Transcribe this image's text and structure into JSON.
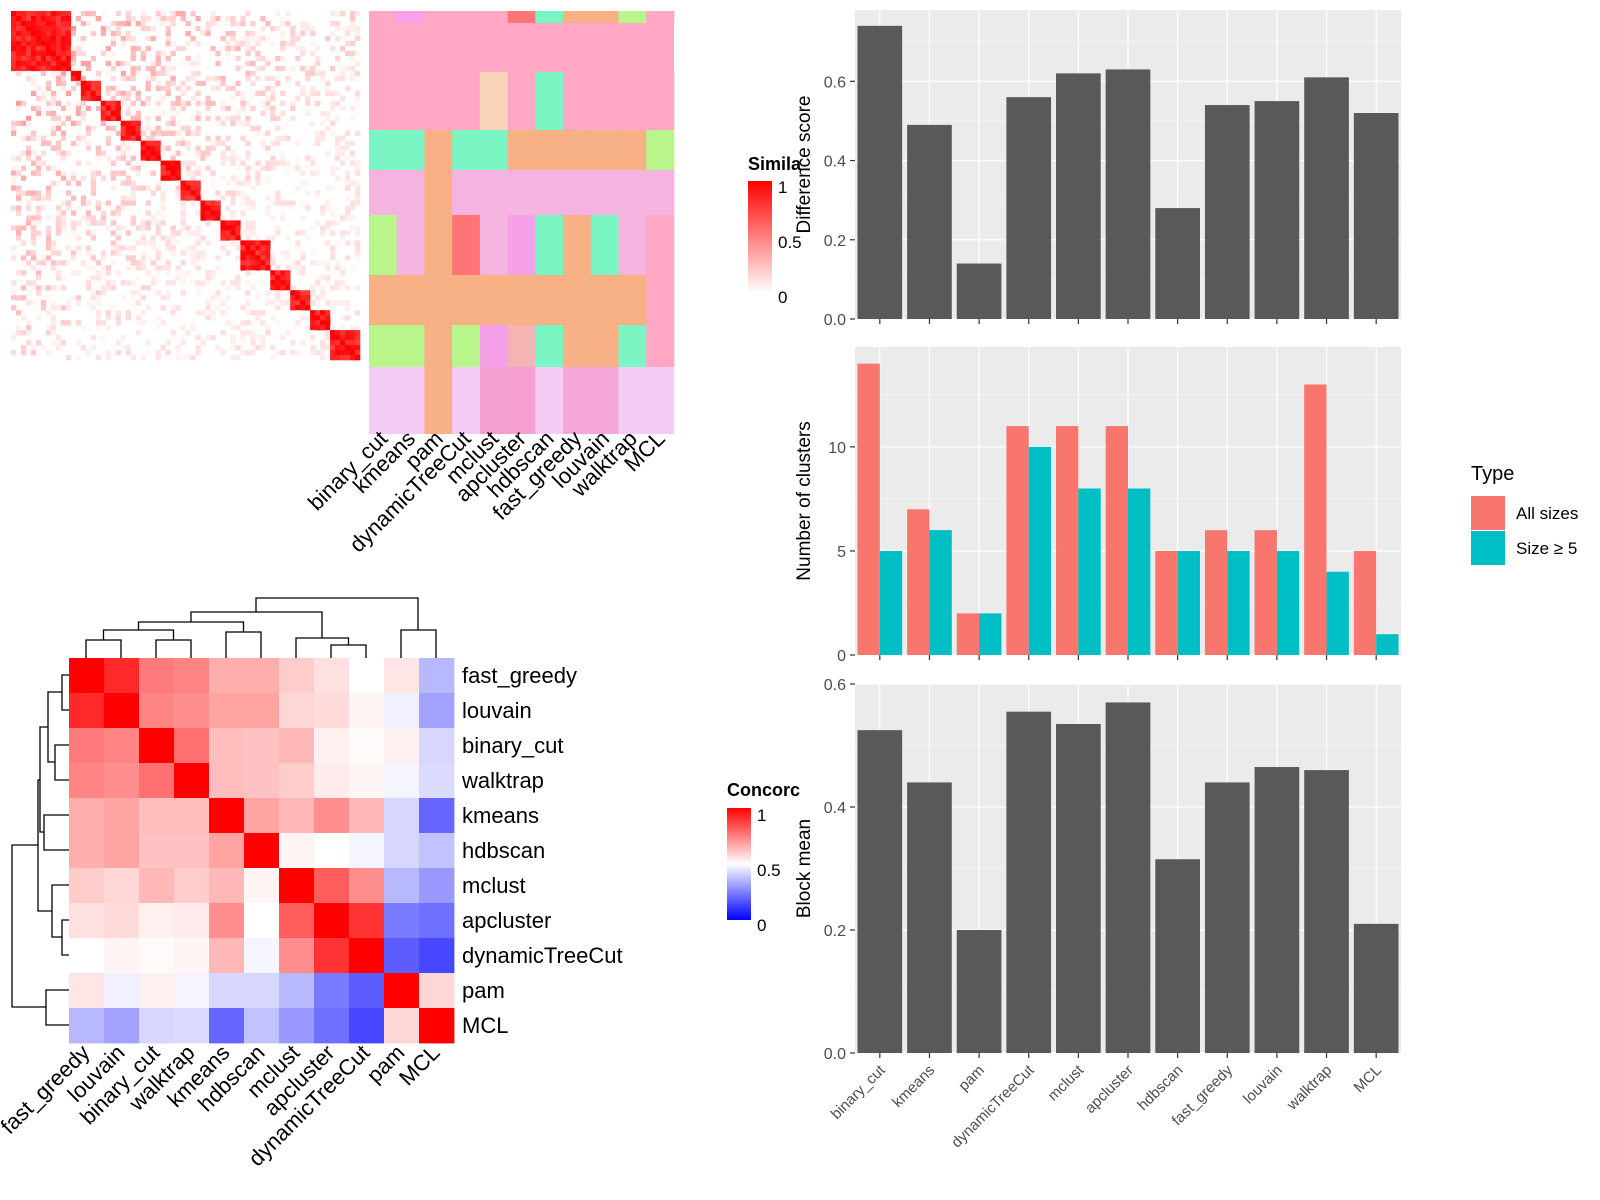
{
  "similarity_heatmap": {
    "legend_title": "Simila",
    "legend_ticks": [
      "1",
      "0.5",
      "0"
    ],
    "methods": [
      "binary_cut",
      "kmeans",
      "pam",
      "dynamicTreeCut",
      "mclust",
      "apcluster",
      "hdbscan",
      "fast_greedy",
      "louvain",
      "walktrap",
      "MCL"
    ]
  },
  "concordance_heatmap": {
    "legend_title": "Concorc",
    "legend_ticks": [
      "1",
      "0.5",
      "0"
    ],
    "order": [
      "fast_greedy",
      "louvain",
      "binary_cut",
      "walktrap",
      "kmeans",
      "hdbscan",
      "mclust",
      "apcluster",
      "dynamicTreeCut",
      "pam",
      "MCL"
    ]
  },
  "chart_data": [
    {
      "type": "heatmap",
      "name": "concordance",
      "rows": [
        "fast_greedy",
        "louvain",
        "binary_cut",
        "walktrap",
        "kmeans",
        "hdbscan",
        "mclust",
        "apcluster",
        "dynamicTreeCut",
        "pam",
        "MCL"
      ],
      "cols": [
        "fast_greedy",
        "louvain",
        "binary_cut",
        "walktrap",
        "kmeans",
        "hdbscan",
        "mclust",
        "apcluster",
        "dynamicTreeCut",
        "pam",
        "MCL"
      ],
      "values": [
        [
          1.0,
          0.92,
          0.76,
          0.74,
          0.66,
          0.66,
          0.6,
          0.56,
          0.5,
          0.55,
          0.36
        ],
        [
          0.92,
          1.0,
          0.74,
          0.72,
          0.68,
          0.68,
          0.58,
          0.57,
          0.52,
          0.47,
          0.32
        ],
        [
          0.76,
          0.74,
          1.0,
          0.78,
          0.63,
          0.62,
          0.64,
          0.53,
          0.51,
          0.53,
          0.42
        ],
        [
          0.74,
          0.72,
          0.78,
          1.0,
          0.63,
          0.62,
          0.6,
          0.54,
          0.52,
          0.48,
          0.43
        ],
        [
          0.66,
          0.68,
          0.63,
          0.63,
          1.0,
          0.68,
          0.64,
          0.72,
          0.64,
          0.42,
          0.2
        ],
        [
          0.66,
          0.68,
          0.62,
          0.62,
          0.68,
          1.0,
          0.52,
          0.5,
          0.48,
          0.42,
          0.38
        ],
        [
          0.6,
          0.58,
          0.64,
          0.6,
          0.64,
          0.52,
          1.0,
          0.82,
          0.72,
          0.36,
          0.3
        ],
        [
          0.56,
          0.57,
          0.53,
          0.54,
          0.72,
          0.5,
          0.82,
          1.0,
          0.9,
          0.24,
          0.22
        ],
        [
          0.5,
          0.52,
          0.51,
          0.52,
          0.64,
          0.48,
          0.72,
          0.9,
          1.0,
          0.18,
          0.14
        ],
        [
          0.55,
          0.47,
          0.53,
          0.48,
          0.42,
          0.42,
          0.36,
          0.24,
          0.18,
          1.0,
          0.58
        ],
        [
          0.36,
          0.32,
          0.42,
          0.43,
          0.2,
          0.38,
          0.3,
          0.22,
          0.14,
          0.58,
          1.0
        ]
      ],
      "color_range": [
        0,
        1
      ]
    },
    {
      "type": "bar",
      "name": "difference",
      "categories": [
        "binary_cut",
        "kmeans",
        "pam",
        "dynamicTreeCut",
        "mclust",
        "apcluster",
        "hdbscan",
        "fast_greedy",
        "louvain",
        "walktrap",
        "MCL"
      ],
      "values": [
        0.74,
        0.49,
        0.14,
        0.56,
        0.62,
        0.63,
        0.28,
        0.54,
        0.55,
        0.61,
        0.52
      ],
      "ylabel": "Difference score",
      "ylim": [
        0,
        0.78
      ],
      "yticks": [
        "0.0",
        "0.2",
        "0.4",
        "0.6"
      ],
      "grid": true
    },
    {
      "type": "bar",
      "name": "clusters",
      "categories": [
        "binary_cut",
        "kmeans",
        "pam",
        "dynamicTreeCut",
        "mclust",
        "apcluster",
        "hdbscan",
        "fast_greedy",
        "louvain",
        "walktrap",
        "MCL"
      ],
      "series": [
        {
          "name": "All sizes",
          "values": [
            14,
            7,
            2,
            11,
            11,
            11,
            5,
            6,
            6,
            13,
            5
          ],
          "color": "#F8766D"
        },
        {
          "name": "Size ≥ 5",
          "values": [
            5,
            6,
            2,
            10,
            8,
            8,
            5,
            5,
            5,
            4,
            1
          ],
          "color": "#00BFC4"
        }
      ],
      "ylabel": "Number of clusters",
      "ylim": [
        0,
        14.8
      ],
      "yticks": [
        "0",
        "5",
        "10"
      ],
      "legend_title": "Type",
      "legend_position": "right",
      "grid": true
    },
    {
      "type": "bar",
      "name": "blockmean",
      "categories": [
        "binary_cut",
        "kmeans",
        "pam",
        "dynamicTreeCut",
        "mclust",
        "apcluster",
        "hdbscan",
        "fast_greedy",
        "louvain",
        "walktrap",
        "MCL"
      ],
      "values": [
        0.525,
        0.44,
        0.2,
        0.555,
        0.535,
        0.57,
        0.315,
        0.44,
        0.465,
        0.46,
        0.21
      ],
      "ylabel": "Block mean",
      "ylim": [
        0,
        0.6
      ],
      "yticks": [
        "0.0",
        "0.2",
        "0.4",
        "0.6"
      ],
      "grid": true
    }
  ]
}
